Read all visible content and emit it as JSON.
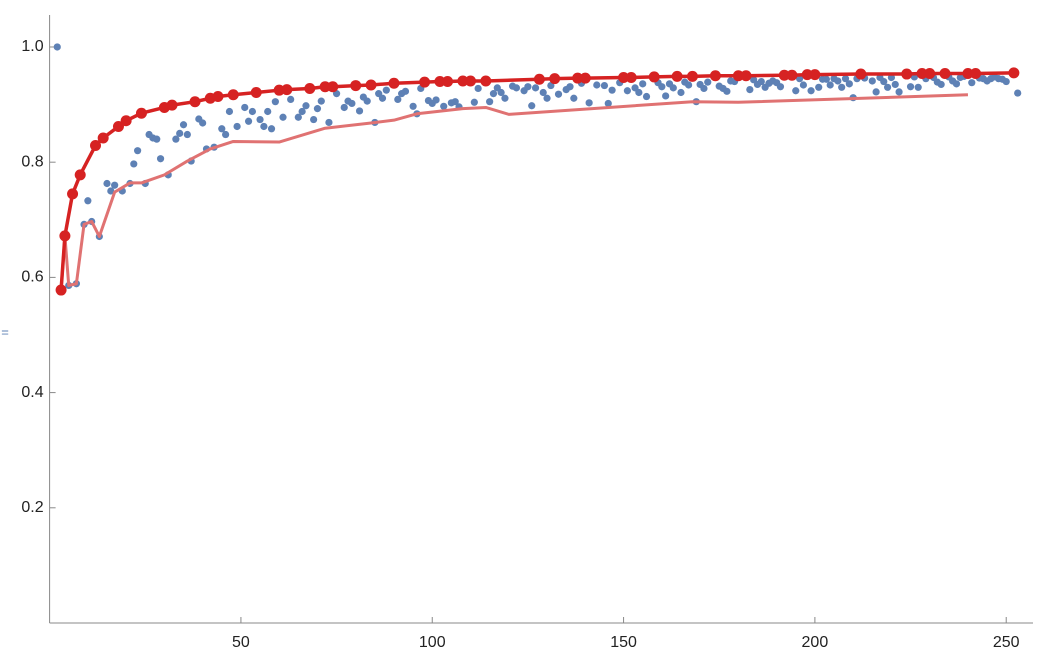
{
  "chart_data": {
    "type": "scatter",
    "ylabel": "=",
    "xlim": [
      0,
      257
    ],
    "ylim": [
      0,
      1.055
    ],
    "xticks": [
      50,
      100,
      150,
      200,
      250
    ],
    "yticks": [
      0.2,
      0.4,
      0.6,
      0.8,
      {
        "value": 1,
        "label": "1.0"
      }
    ],
    "grid": false,
    "series": [
      {
        "color": "#5e81b5",
        "line": false,
        "markers": true,
        "x": [
          2,
          5,
          7,
          9,
          10,
          11,
          13,
          15,
          16,
          17,
          19,
          21,
          22,
          23,
          25,
          26,
          27,
          28,
          29,
          31,
          33,
          34,
          35,
          36,
          37,
          39,
          40,
          41,
          43,
          45,
          46,
          47,
          49,
          51,
          52,
          53,
          55,
          56,
          57,
          58,
          59,
          61,
          63,
          65,
          66,
          67,
          69,
          70,
          71,
          73,
          75,
          77,
          78,
          79,
          81,
          82,
          83,
          85,
          86,
          87,
          88,
          91,
          92,
          93,
          95,
          96,
          97,
          99,
          100,
          101,
          103,
          105,
          106,
          107,
          111,
          112,
          115,
          116,
          117,
          118,
          119,
          121,
          122,
          124,
          125,
          126,
          127,
          129,
          130,
          131,
          133,
          135,
          136,
          137,
          139,
          141,
          143,
          145,
          146,
          147,
          149,
          151,
          153,
          154,
          155,
          156,
          159,
          160,
          161,
          162,
          163,
          165,
          166,
          167,
          169,
          170,
          171,
          172,
          175,
          176,
          177,
          178,
          179,
          183,
          184,
          185,
          186,
          187,
          188,
          189,
          190,
          191,
          195,
          196,
          197,
          199,
          201,
          202,
          203,
          204,
          205,
          206,
          207,
          208,
          209,
          210,
          211,
          213,
          215,
          216,
          217,
          218,
          219,
          220,
          221,
          222,
          225,
          226,
          227,
          229,
          231,
          232,
          233,
          235,
          236,
          237,
          238,
          239,
          241,
          243,
          244,
          245,
          246,
          247,
          248,
          249,
          250,
          253
        ],
        "values": [
          1.0,
          0.586,
          0.589,
          0.692,
          0.733,
          0.697,
          0.671,
          0.763,
          0.75,
          0.76,
          0.75,
          0.763,
          0.797,
          0.82,
          0.763,
          0.848,
          0.842,
          0.84,
          0.806,
          0.778,
          0.84,
          0.85,
          0.865,
          0.848,
          0.802,
          0.875,
          0.868,
          0.823,
          0.826,
          0.858,
          0.848,
          0.888,
          0.862,
          0.895,
          0.871,
          0.888,
          0.874,
          0.862,
          0.888,
          0.858,
          0.905,
          0.878,
          0.909,
          0.878,
          0.888,
          0.898,
          0.874,
          0.893,
          0.906,
          0.869,
          0.919,
          0.895,
          0.906,
          0.902,
          0.889,
          0.913,
          0.906,
          0.869,
          0.919,
          0.911,
          0.925,
          0.909,
          0.919,
          0.923,
          0.897,
          0.884,
          0.928,
          0.907,
          0.902,
          0.908,
          0.897,
          0.903,
          0.905,
          0.896,
          0.904,
          0.928,
          0.905,
          0.919,
          0.929,
          0.921,
          0.911,
          0.932,
          0.929,
          0.924,
          0.931,
          0.898,
          0.929,
          0.921,
          0.911,
          0.933,
          0.918,
          0.926,
          0.931,
          0.911,
          0.937,
          0.903,
          0.934,
          0.933,
          0.902,
          0.925,
          0.938,
          0.924,
          0.929,
          0.921,
          0.936,
          0.914,
          0.938,
          0.931,
          0.915,
          0.936,
          0.929,
          0.921,
          0.939,
          0.934,
          0.905,
          0.935,
          0.928,
          0.939,
          0.932,
          0.928,
          0.923,
          0.941,
          0.94,
          0.926,
          0.943,
          0.935,
          0.94,
          0.93,
          0.937,
          0.941,
          0.938,
          0.931,
          0.924,
          0.945,
          0.934,
          0.924,
          0.93,
          0.944,
          0.944,
          0.934,
          0.945,
          0.941,
          0.93,
          0.945,
          0.936,
          0.912,
          0.945,
          0.946,
          0.941,
          0.922,
          0.947,
          0.94,
          0.93,
          0.947,
          0.935,
          0.922,
          0.931,
          0.948,
          0.93,
          0.945,
          0.947,
          0.939,
          0.935,
          0.948,
          0.941,
          0.936,
          0.947,
          0.949,
          0.938,
          0.946,
          0.945,
          0.941,
          0.945,
          0.948,
          0.945,
          0.944,
          0.94,
          0.92
        ]
      },
      {
        "color": "#e07272",
        "line": true,
        "markers": false,
        "x": [
          3,
          4,
          5,
          7,
          9,
          11,
          13,
          17,
          21,
          24,
          30,
          36,
          42,
          48,
          60,
          72,
          84,
          90,
          96,
          108,
          114,
          120,
          168,
          180,
          240
        ],
        "values": [
          0.578,
          0.672,
          0.586,
          0.589,
          0.692,
          0.697,
          0.671,
          0.748,
          0.764,
          0.764,
          0.778,
          0.802,
          0.823,
          0.836,
          0.835,
          0.859,
          0.868,
          0.873,
          0.884,
          0.893,
          0.895,
          0.883,
          0.905,
          0.904,
          0.917
        ]
      },
      {
        "color": "#d62222",
        "line": true,
        "markers": true,
        "x": [
          3,
          4,
          6,
          8,
          12,
          14,
          18,
          20,
          24,
          30,
          32,
          38,
          42,
          44,
          48,
          54,
          60,
          62,
          68,
          72,
          74,
          80,
          84,
          90,
          98,
          102,
          104,
          108,
          110,
          114,
          128,
          132,
          138,
          140,
          150,
          152,
          158,
          164,
          168,
          174,
          180,
          182,
          192,
          194,
          198,
          200,
          212,
          224,
          228,
          230,
          234,
          240,
          242,
          252
        ],
        "values": [
          0.578,
          0.672,
          0.745,
          0.778,
          0.829,
          0.842,
          0.862,
          0.872,
          0.885,
          0.895,
          0.899,
          0.905,
          0.911,
          0.914,
          0.917,
          0.921,
          0.925,
          0.926,
          0.928,
          0.931,
          0.931,
          0.933,
          0.934,
          0.937,
          0.939,
          0.94,
          0.94,
          0.941,
          0.941,
          0.941,
          0.944,
          0.945,
          0.946,
          0.946,
          0.947,
          0.947,
          0.948,
          0.949,
          0.949,
          0.95,
          0.95,
          0.95,
          0.951,
          0.951,
          0.952,
          0.952,
          0.953,
          0.953,
          0.954,
          0.954,
          0.954,
          0.954,
          0.954,
          0.955
        ]
      }
    ]
  }
}
